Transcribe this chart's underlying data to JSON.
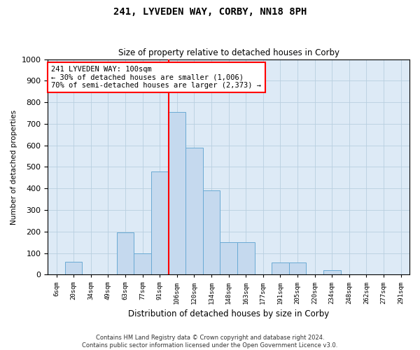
{
  "title": "241, LYVEDEN WAY, CORBY, NN18 8PH",
  "subtitle": "Size of property relative to detached houses in Corby",
  "xlabel": "Distribution of detached houses by size in Corby",
  "ylabel": "Number of detached properties",
  "categories": [
    "6sqm",
    "20sqm",
    "34sqm",
    "49sqm",
    "63sqm",
    "77sqm",
    "91sqm",
    "106sqm",
    "120sqm",
    "134sqm",
    "148sqm",
    "163sqm",
    "177sqm",
    "191sqm",
    "205sqm",
    "220sqm",
    "234sqm",
    "248sqm",
    "262sqm",
    "277sqm",
    "291sqm"
  ],
  "values": [
    0,
    60,
    0,
    0,
    195,
    100,
    480,
    755,
    590,
    390,
    150,
    150,
    0,
    55,
    55,
    0,
    20,
    0,
    0,
    0,
    0
  ],
  "bar_color": "#c5d9ee",
  "bar_edge_color": "#6aaad4",
  "vline_index": 7,
  "vline_color": "red",
  "annotation_text": "241 LYVEDEN WAY: 100sqm\n← 30% of detached houses are smaller (1,006)\n70% of semi-detached houses are larger (2,373) →",
  "annotation_box_color": "white",
  "annotation_box_edge_color": "red",
  "ylim": [
    0,
    1000
  ],
  "yticks": [
    0,
    100,
    200,
    300,
    400,
    500,
    600,
    700,
    800,
    900,
    1000
  ],
  "footer": "Contains HM Land Registry data © Crown copyright and database right 2024.\nContains public sector information licensed under the Open Government Licence v3.0.",
  "grid_color": "#b8cfe0",
  "bg_color": "#ddeaf6"
}
